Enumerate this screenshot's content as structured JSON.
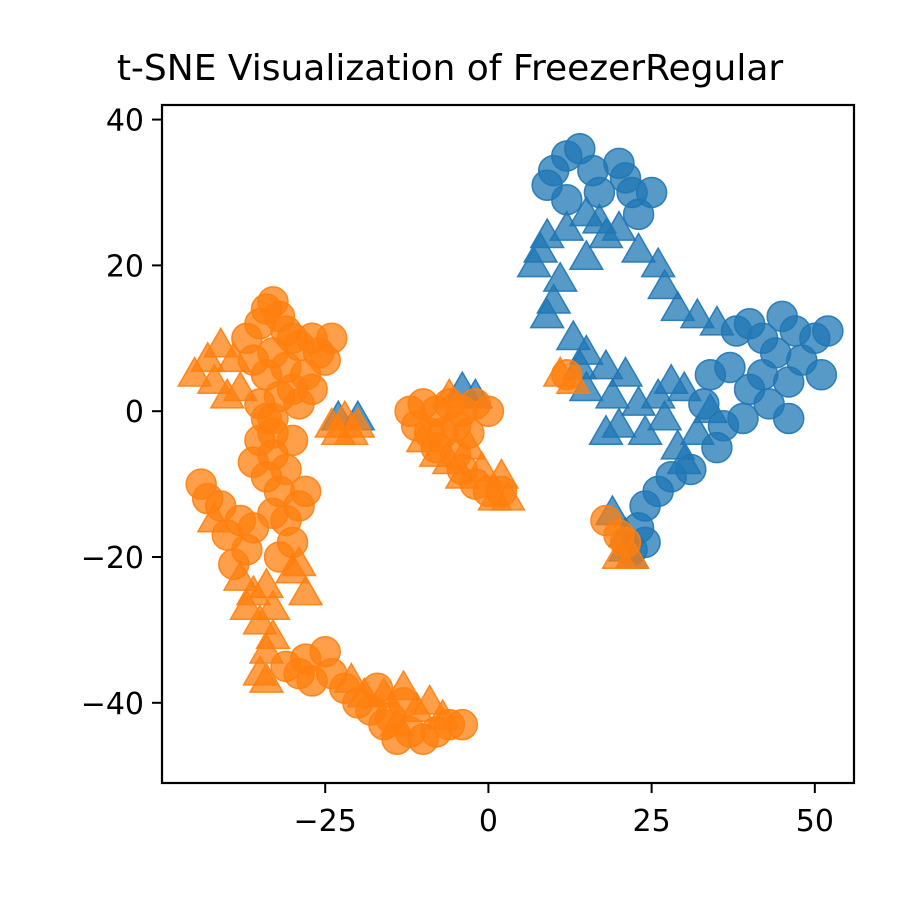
{
  "chart_data": {
    "type": "scatter",
    "title": "t-SNE Visualization of FreezerRegular",
    "xlabel": "",
    "ylabel": "",
    "xlim": [
      -50,
      56
    ],
    "ylim": [
      -51,
      42
    ],
    "x_ticks": [
      -25,
      0,
      25,
      50
    ],
    "x_tick_labels": [
      "−25",
      "0",
      "25",
      "50"
    ],
    "y_ticks": [
      40,
      20,
      0,
      -20,
      -40
    ],
    "y_tick_labels": [
      "40",
      "20",
      "0",
      "−20",
      "−40"
    ],
    "grid": false,
    "legend": "none",
    "marker_styles": [
      "circle",
      "triangle"
    ],
    "series_colors": [
      "#1f77b4",
      "#ff7f0e"
    ],
    "series": [
      {
        "color": "#1f77b4",
        "clusters": [
          {
            "marker": "circle",
            "points": [
              [
                12,
                35
              ],
              [
                14,
                36
              ],
              [
                10,
                33
              ],
              [
                9,
                31
              ],
              [
                12,
                29
              ],
              [
                16,
                33
              ],
              [
                17,
                30
              ],
              [
                20,
                34
              ],
              [
                22,
                30
              ],
              [
                25,
                30
              ],
              [
                23,
                27
              ],
              [
                21,
                32
              ]
            ]
          },
          {
            "marker": "triangle",
            "points": [
              [
                9,
                24
              ],
              [
                8,
                22
              ],
              [
                7,
                20
              ],
              [
                11,
                18
              ],
              [
                10,
                15
              ],
              [
                9,
                13
              ],
              [
                12,
                25
              ],
              [
                15,
                27
              ],
              [
                18,
                24
              ],
              [
                15,
                21
              ],
              [
                17,
                26
              ],
              [
                20,
                25
              ],
              [
                23,
                22
              ],
              [
                26,
                20
              ],
              [
                27,
                17
              ],
              [
                29,
                14
              ],
              [
                32,
                13
              ],
              [
                35,
                12
              ]
            ]
          },
          {
            "marker": "triangle",
            "points": [
              [
                13,
                10
              ],
              [
                14,
                6
              ],
              [
                15,
                8
              ],
              [
                15,
                3
              ],
              [
                18,
                6
              ],
              [
                19,
                2
              ],
              [
                21,
                5
              ],
              [
                23,
                1
              ],
              [
                20,
                -2
              ],
              [
                18,
                -3
              ],
              [
                24,
                -3
              ],
              [
                26,
                2
              ],
              [
                28,
                4
              ],
              [
                30,
                3
              ],
              [
                27,
                -1
              ],
              [
                29,
                -5
              ],
              [
                32,
                -3
              ],
              [
                34,
                0
              ],
              [
                30,
                -7
              ]
            ]
          },
          {
            "marker": "circle",
            "points": [
              [
                38,
                11
              ],
              [
                40,
                12
              ],
              [
                42,
                10
              ],
              [
                45,
                13
              ],
              [
                47,
                11
              ],
              [
                50,
                10
              ],
              [
                52,
                11
              ],
              [
                48,
                7
              ],
              [
                51,
                5
              ],
              [
                46,
                4
              ],
              [
                44,
                8
              ],
              [
                42,
                5
              ],
              [
                40,
                3
              ],
              [
                43,
                1
              ],
              [
                46,
                -1
              ],
              [
                39,
                -1
              ],
              [
                36,
                -2
              ],
              [
                37,
                6
              ],
              [
                34,
                5
              ],
              [
                33,
                1
              ],
              [
                35,
                -5
              ],
              [
                31,
                -8
              ],
              [
                28,
                -9
              ],
              [
                26,
                -11
              ]
            ]
          },
          {
            "marker": "circle",
            "points": [
              [
                24,
                -13
              ],
              [
                23,
                -16
              ],
              [
                22,
                -19
              ],
              [
                24,
                -18
              ]
            ]
          },
          {
            "marker": "triangle",
            "points": [
              [
                19,
                -14
              ],
              [
                21,
                -17
              ],
              [
                22,
                -20
              ],
              [
                21,
                -19
              ]
            ]
          },
          {
            "marker": "triangle",
            "points": [
              [
                -23,
                -1
              ],
              [
                -20,
                -1
              ],
              [
                -2,
                2
              ],
              [
                -4,
                3
              ]
            ]
          }
        ]
      },
      {
        "color": "#ff7f0e",
        "clusters": [
          {
            "marker": "triangle",
            "points": [
              [
                -45,
                5
              ],
              [
                -43,
                7
              ],
              [
                -41,
                9
              ],
              [
                -42,
                4
              ],
              [
                -39,
                7
              ],
              [
                -38,
                3
              ],
              [
                -40,
                2
              ]
            ]
          },
          {
            "marker": "circle",
            "points": [
              [
                -37,
                10
              ],
              [
                -35,
                12
              ],
              [
                -34,
                14
              ],
              [
                -33,
                15
              ],
              [
                -32,
                13
              ],
              [
                -31,
                11
              ],
              [
                -30,
                10
              ],
              [
                -29,
                9
              ],
              [
                -27,
                10
              ],
              [
                -26,
                8
              ],
              [
                -25,
                7
              ],
              [
                -24,
                10
              ],
              [
                -36,
                7
              ],
              [
                -34,
                5
              ],
              [
                -33,
                8
              ],
              [
                -31,
                6
              ],
              [
                -30,
                3
              ],
              [
                -32,
                2
              ],
              [
                -35,
                1
              ],
              [
                -28,
                5
              ],
              [
                -27,
                3
              ],
              [
                -29,
                1
              ],
              [
                -33,
                -1
              ]
            ]
          },
          {
            "marker": "triangle",
            "points": [
              [
                -24,
                -2
              ],
              [
                -22,
                -1
              ],
              [
                -20,
                -2
              ],
              [
                -23,
                -3
              ],
              [
                -21,
                -3
              ]
            ]
          },
          {
            "marker": "circle",
            "points": [
              [
                -35,
                -4
              ],
              [
                -33,
                -6
              ],
              [
                -34,
                -9
              ],
              [
                -36,
                -7
              ],
              [
                -32,
                -11
              ],
              [
                -31,
                -8
              ],
              [
                -30,
                -4
              ],
              [
                -33,
                -3
              ],
              [
                -34,
                -1
              ]
            ]
          },
          {
            "marker": "circle",
            "points": [
              [
                -44,
                -10
              ],
              [
                -43,
                -12
              ],
              [
                -41,
                -13
              ],
              [
                -38,
                -15
              ],
              [
                -40,
                -17
              ],
              [
                -37,
                -19
              ],
              [
                -39,
                -21
              ],
              [
                -36,
                -16
              ],
              [
                -33,
                -14
              ],
              [
                -31,
                -15
              ],
              [
                -29,
                -13
              ],
              [
                -28,
                -11
              ],
              [
                -30,
                -18
              ],
              [
                -32,
                -20
              ]
            ]
          },
          {
            "marker": "triangle",
            "points": [
              [
                -42,
                -15
              ],
              [
                -38,
                -23
              ],
              [
                -36,
                -25
              ],
              [
                -37,
                -27
              ],
              [
                -34,
                -24
              ],
              [
                -33,
                -27
              ],
              [
                -35,
                -29
              ],
              [
                -33,
                -31
              ],
              [
                -34,
                -33
              ],
              [
                -35,
                -36
              ],
              [
                -34,
                -37
              ],
              [
                -30,
                -22
              ],
              [
                -28,
                -25
              ],
              [
                -29,
                -21
              ]
            ]
          },
          {
            "marker": "circle",
            "points": [
              [
                -31,
                -35
              ],
              [
                -29,
                -36
              ],
              [
                -27,
                -37
              ],
              [
                -25,
                -33
              ],
              [
                -28,
                -34
              ],
              [
                -24,
                -36
              ],
              [
                -22,
                -38
              ],
              [
                -20,
                -40
              ],
              [
                -18,
                -41
              ],
              [
                -16,
                -43
              ],
              [
                -14,
                -45
              ],
              [
                -15,
                -42
              ],
              [
                -12,
                -44
              ],
              [
                -10,
                -45
              ],
              [
                -8,
                -44
              ],
              [
                -6,
                -43
              ],
              [
                -4,
                -43
              ],
              [
                -13,
                -40
              ],
              [
                -17,
                -38
              ]
            ]
          },
          {
            "marker": "triangle",
            "points": [
              [
                -21,
                -37
              ],
              [
                -19,
                -39
              ],
              [
                -16,
                -39
              ],
              [
                -13,
                -38
              ],
              [
                -11,
                -41
              ],
              [
                -9,
                -40
              ],
              [
                -7,
                -42
              ],
              [
                -14,
                -43
              ]
            ]
          },
          {
            "marker": "circle",
            "points": [
              [
                -12,
                0
              ],
              [
                -10,
                1
              ],
              [
                -8,
                0
              ],
              [
                -6,
                1
              ],
              [
                -4,
                0
              ],
              [
                -2,
                1
              ],
              [
                0,
                0
              ],
              [
                -11,
                -2
              ],
              [
                -9,
                -3
              ],
              [
                -7,
                -3
              ],
              [
                -5,
                -2
              ],
              [
                -3,
                -3
              ],
              [
                -8,
                -5
              ],
              [
                -5,
                -6
              ],
              [
                -4,
                -8
              ],
              [
                -2,
                -10
              ],
              [
                0,
                -11
              ],
              [
                2,
                -11
              ]
            ]
          },
          {
            "marker": "triangle",
            "points": [
              [
                -10,
                -4
              ],
              [
                -8,
                -6
              ],
              [
                -6,
                -7
              ],
              [
                -4,
                -9
              ],
              [
                -3,
                -5
              ],
              [
                -1,
                -8
              ],
              [
                1,
                -12
              ],
              [
                3,
                -12
              ],
              [
                2,
                -9
              ],
              [
                -6,
                2
              ]
            ]
          },
          {
            "marker": "circle",
            "points": [
              [
                12,
                5
              ],
              [
                18,
                -15
              ],
              [
                20,
                -17
              ],
              [
                21,
                -18
              ]
            ]
          },
          {
            "marker": "triangle",
            "points": [
              [
                11,
                5
              ],
              [
                13,
                4
              ],
              [
                20,
                -20
              ],
              [
                22,
                -20
              ]
            ]
          }
        ]
      }
    ]
  }
}
